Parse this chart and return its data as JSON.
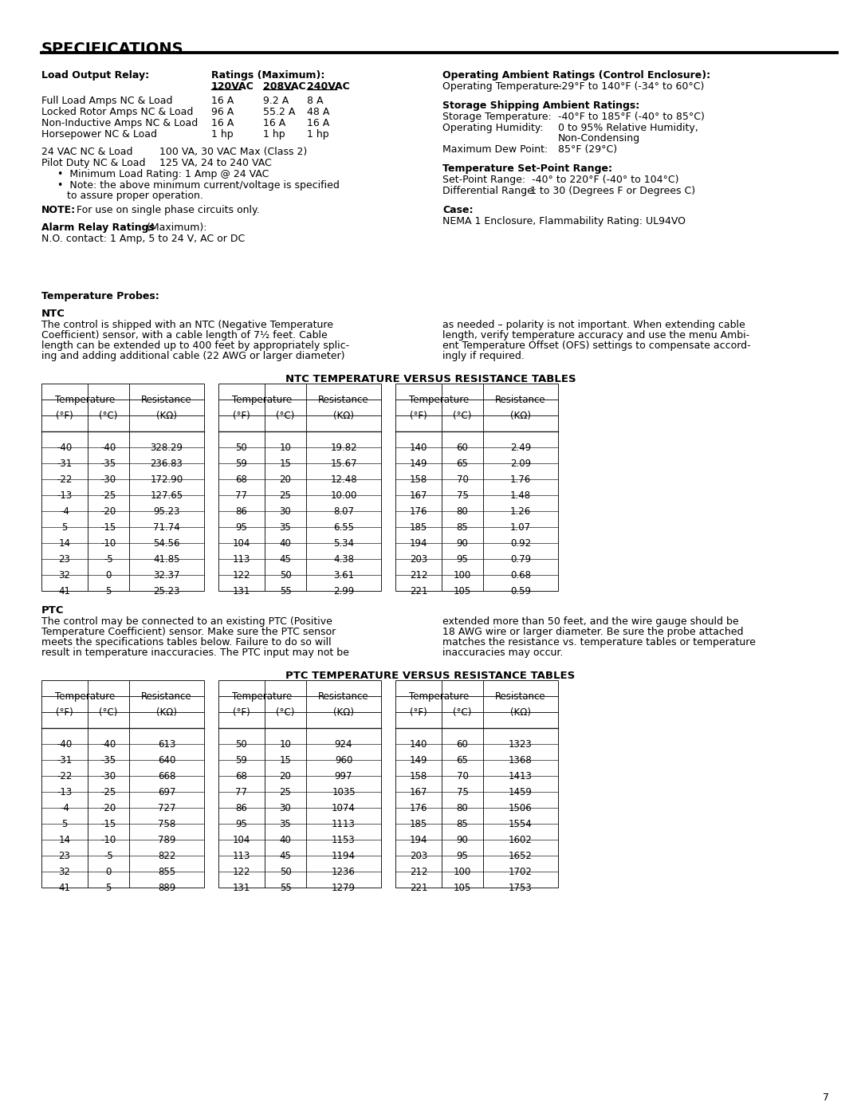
{
  "title": "SPECIFICATIONS",
  "page_number": "7",
  "ntc_table_title": "NTC TEMPERATURE VERSUS RESISTANCE TABLES",
  "ptc_table_title": "PTC TEMPERATURE VERSUS RESISTANCE TABLES",
  "ntc_table": {
    "col1": [
      [
        "-40",
        "-40",
        "328.29"
      ],
      [
        "-31",
        "-35",
        "236.83"
      ],
      [
        "-22",
        "-30",
        "172.90"
      ],
      [
        "-13",
        "-25",
        "127.65"
      ],
      [
        "-4",
        "-20",
        "95.23"
      ],
      [
        "5",
        "-15",
        "71.74"
      ],
      [
        "14",
        "-10",
        "54.56"
      ],
      [
        "23",
        "-5",
        "41.85"
      ],
      [
        "32",
        "0",
        "32.37"
      ],
      [
        "41",
        "5",
        "25.23"
      ]
    ],
    "col2": [
      [
        "50",
        "10",
        "19.82"
      ],
      [
        "59",
        "15",
        "15.67"
      ],
      [
        "68",
        "20",
        "12.48"
      ],
      [
        "77",
        "25",
        "10.00"
      ],
      [
        "86",
        "30",
        "8.07"
      ],
      [
        "95",
        "35",
        "6.55"
      ],
      [
        "104",
        "40",
        "5.34"
      ],
      [
        "113",
        "45",
        "4.38"
      ],
      [
        "122",
        "50",
        "3.61"
      ],
      [
        "131",
        "55",
        "2.99"
      ]
    ],
    "col3": [
      [
        "140",
        "60",
        "2.49"
      ],
      [
        "149",
        "65",
        "2.09"
      ],
      [
        "158",
        "70",
        "1.76"
      ],
      [
        "167",
        "75",
        "1.48"
      ],
      [
        "176",
        "80",
        "1.26"
      ],
      [
        "185",
        "85",
        "1.07"
      ],
      [
        "194",
        "90",
        "0.92"
      ],
      [
        "203",
        "95",
        "0.79"
      ],
      [
        "212",
        "100",
        "0.68"
      ],
      [
        "221",
        "105",
        "0.59"
      ]
    ]
  },
  "ptc_table": {
    "col1": [
      [
        "-40",
        "-40",
        "613"
      ],
      [
        "-31",
        "-35",
        "640"
      ],
      [
        "-22",
        "-30",
        "668"
      ],
      [
        "-13",
        "-25",
        "697"
      ],
      [
        "-4",
        "-20",
        "727"
      ],
      [
        "5",
        "-15",
        "758"
      ],
      [
        "14",
        "-10",
        "789"
      ],
      [
        "23",
        "-5",
        "822"
      ],
      [
        "32",
        "0",
        "855"
      ],
      [
        "41",
        "5",
        "889"
      ]
    ],
    "col2": [
      [
        "50",
        "10",
        "924"
      ],
      [
        "59",
        "15",
        "960"
      ],
      [
        "68",
        "20",
        "997"
      ],
      [
        "77",
        "25",
        "1035"
      ],
      [
        "86",
        "30",
        "1074"
      ],
      [
        "95",
        "35",
        "1113"
      ],
      [
        "104",
        "40",
        "1153"
      ],
      [
        "113",
        "45",
        "1194"
      ],
      [
        "122",
        "50",
        "1236"
      ],
      [
        "131",
        "55",
        "1279"
      ]
    ],
    "col3": [
      [
        "140",
        "60",
        "1323"
      ],
      [
        "149",
        "65",
        "1368"
      ],
      [
        "158",
        "70",
        "1413"
      ],
      [
        "167",
        "75",
        "1459"
      ],
      [
        "176",
        "80",
        "1506"
      ],
      [
        "185",
        "85",
        "1554"
      ],
      [
        "194",
        "90",
        "1602"
      ],
      [
        "203",
        "95",
        "1652"
      ],
      [
        "212",
        "100",
        "1702"
      ],
      [
        "221",
        "105",
        "1753"
      ]
    ]
  }
}
